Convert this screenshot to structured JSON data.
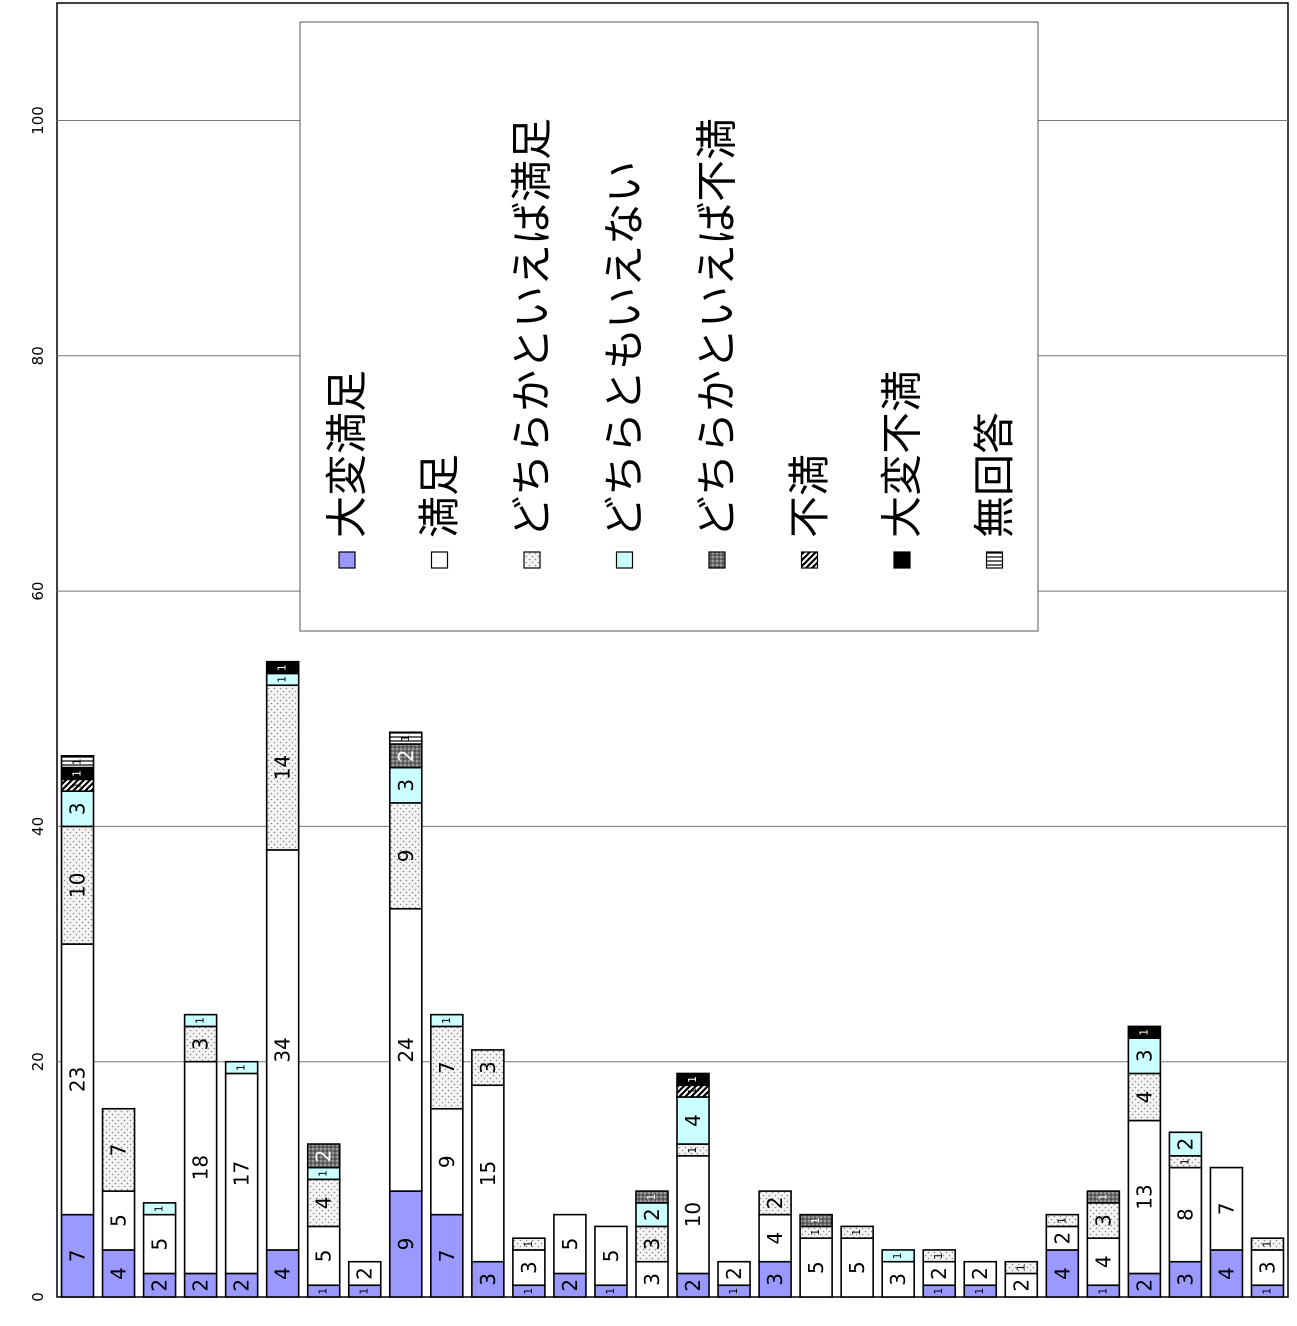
{
  "chart_data": {
    "type": "bar",
    "stacked": true,
    "orientation": "rotated-90",
    "ylim": [
      0,
      110
    ],
    "yticks": [
      "0",
      "20",
      "40",
      "60",
      "80",
      "100"
    ],
    "grid": true,
    "legend_position": "upper-right",
    "series": [
      {
        "name": "大変満足",
        "color": "#9999ff",
        "pattern": "solid"
      },
      {
        "name": "満足",
        "color": "#ffffff",
        "pattern": "solid"
      },
      {
        "name": "どちらかといえば満足",
        "color": "#f4f4f4",
        "pattern": "dots"
      },
      {
        "name": "どちらともいえない",
        "color": "#ccffff",
        "pattern": "solid"
      },
      {
        "name": "どちらかといえば不満",
        "color": "#808080",
        "pattern": "dots-dark"
      },
      {
        "name": "不満",
        "color": "#404040",
        "pattern": "diagonal"
      },
      {
        "name": "大変不満",
        "color": "#000000",
        "pattern": "solid"
      },
      {
        "name": "無回答",
        "color": "#ffffff",
        "pattern": "horizontal"
      }
    ],
    "bars": [
      [
        [
          0,
          7
        ],
        [
          1,
          23
        ],
        [
          2,
          10
        ],
        [
          3,
          3
        ],
        [
          5,
          1
        ],
        [
          6,
          1
        ],
        [
          7,
          1
        ]
      ],
      [
        [
          0,
          4
        ],
        [
          1,
          5
        ],
        [
          2,
          7
        ]
      ],
      [
        [
          0,
          2
        ],
        [
          1,
          5
        ],
        [
          3,
          1
        ]
      ],
      [
        [
          0,
          2
        ],
        [
          1,
          18
        ],
        [
          2,
          3
        ],
        [
          3,
          1
        ]
      ],
      [
        [
          0,
          2
        ],
        [
          1,
          17
        ],
        [
          3,
          1
        ]
      ],
      [
        [
          0,
          4
        ],
        [
          1,
          34
        ],
        [
          2,
          14
        ],
        [
          3,
          1
        ],
        [
          6,
          1
        ]
      ],
      [
        [
          0,
          1
        ],
        [
          1,
          5
        ],
        [
          2,
          4
        ],
        [
          3,
          1
        ],
        [
          4,
          2
        ]
      ],
      [
        [
          0,
          1
        ],
        [
          1,
          2
        ]
      ],
      [
        [
          0,
          9
        ],
        [
          1,
          24
        ],
        [
          2,
          9
        ],
        [
          3,
          3
        ],
        [
          4,
          2
        ],
        [
          7,
          1
        ]
      ],
      [
        [
          0,
          7
        ],
        [
          1,
          9
        ],
        [
          2,
          7
        ],
        [
          3,
          1
        ]
      ],
      [
        [
          0,
          3
        ],
        [
          1,
          15
        ],
        [
          2,
          3
        ]
      ],
      [
        [
          0,
          1
        ],
        [
          1,
          3
        ],
        [
          2,
          1
        ]
      ],
      [
        [
          0,
          2
        ],
        [
          1,
          5
        ]
      ],
      [
        [
          0,
          1
        ],
        [
          1,
          5
        ]
      ],
      [
        [
          1,
          3
        ],
        [
          2,
          3
        ],
        [
          3,
          2
        ],
        [
          4,
          1
        ]
      ],
      [
        [
          0,
          2
        ],
        [
          1,
          10
        ],
        [
          2,
          1
        ],
        [
          3,
          4
        ],
        [
          5,
          1
        ],
        [
          6,
          1
        ]
      ],
      [
        [
          0,
          1
        ],
        [
          1,
          2
        ]
      ],
      [
        [
          0,
          3
        ],
        [
          1,
          4
        ],
        [
          2,
          2
        ]
      ],
      [
        [
          1,
          5
        ],
        [
          2,
          1
        ],
        [
          4,
          1
        ]
      ],
      [
        [
          1,
          5
        ],
        [
          2,
          1
        ]
      ],
      [
        [
          1,
          3
        ],
        [
          3,
          1
        ]
      ],
      [
        [
          0,
          1
        ],
        [
          1,
          2
        ],
        [
          2,
          1
        ]
      ],
      [
        [
          0,
          1
        ],
        [
          1,
          2
        ]
      ],
      [
        [
          1,
          2
        ],
        [
          2,
          1
        ]
      ],
      [
        [
          0,
          4
        ],
        [
          1,
          2
        ],
        [
          2,
          1
        ]
      ],
      [
        [
          0,
          1
        ],
        [
          1,
          4
        ],
        [
          2,
          3
        ],
        [
          4,
          1
        ]
      ],
      [
        [
          0,
          2
        ],
        [
          1,
          13
        ],
        [
          2,
          4
        ],
        [
          3,
          3
        ],
        [
          6,
          1
        ]
      ],
      [
        [
          0,
          3
        ],
        [
          1,
          8
        ],
        [
          2,
          1
        ],
        [
          3,
          2
        ]
      ],
      [
        [
          0,
          4
        ],
        [
          1,
          7
        ]
      ],
      [
        [
          0,
          1
        ],
        [
          1,
          3
        ],
        [
          2,
          1
        ]
      ]
    ]
  }
}
